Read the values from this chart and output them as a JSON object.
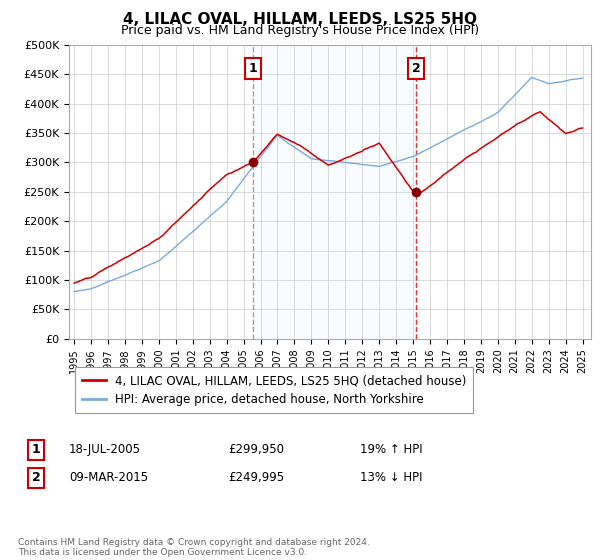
{
  "title": "4, LILAC OVAL, HILLAM, LEEDS, LS25 5HQ",
  "subtitle": "Price paid vs. HM Land Registry's House Price Index (HPI)",
  "ylim": [
    0,
    500000
  ],
  "yticks": [
    0,
    50000,
    100000,
    150000,
    200000,
    250000,
    300000,
    350000,
    400000,
    450000,
    500000
  ],
  "ytick_labels": [
    "£0",
    "£50K",
    "£100K",
    "£150K",
    "£200K",
    "£250K",
    "£300K",
    "£350K",
    "£400K",
    "£450K",
    "£500K"
  ],
  "sale1": {
    "date_num": 2005.54,
    "price": 299950,
    "label": "1",
    "date_str": "18-JUL-2005",
    "price_str": "£299,950",
    "pct": "19% ↑ HPI"
  },
  "sale2": {
    "date_num": 2015.18,
    "price": 249995,
    "label": "2",
    "date_str": "09-MAR-2015",
    "price_str": "£249,995",
    "pct": "13% ↓ HPI"
  },
  "legend_house": "4, LILAC OVAL, HILLAM, LEEDS, LS25 5HQ (detached house)",
  "legend_hpi": "HPI: Average price, detached house, North Yorkshire",
  "footer": "Contains HM Land Registry data © Crown copyright and database right 2024.\nThis data is licensed under the Open Government Licence v3.0.",
  "line_color_house": "#cc0000",
  "line_color_hpi": "#7aaadd",
  "dot_color": "#880000",
  "shade_color": "#ddeeff",
  "background_color": "#ffffff",
  "grid_color": "#cccccc",
  "xlim_left": 1994.7,
  "xlim_right": 2025.5
}
